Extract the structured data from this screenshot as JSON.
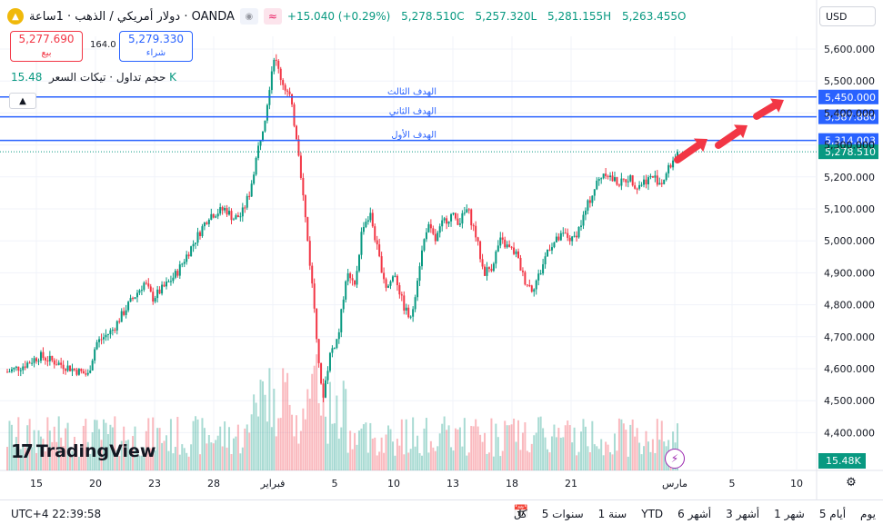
{
  "header": {
    "symbol_icon": "gold-coin-icon",
    "symbol_title": "دولار أمريكي / الذهب · 1ساعة · OANDA",
    "change": "+15.040 (+0.29%)",
    "ohlc": {
      "c": "5,278.510C",
      "l": "5,257.320L",
      "h": "5,281.155H",
      "o": "5,263.455O"
    }
  },
  "sell": {
    "price": "5,277.690",
    "label": "بيع"
  },
  "buy": {
    "price": "5,279.330",
    "label": "شراء"
  },
  "spread": "164.0",
  "volume_legend": {
    "label": "حجم تداول · تيكات السعر",
    "value": "15.48 K"
  },
  "currency": "USD",
  "logo_text": "TradingView",
  "chart_data": {
    "type": "candlestick",
    "symbol": "XAU/USD",
    "interval": "1h",
    "y_axis": {
      "ticks": [
        "5,600.000",
        "5,500.000",
        "5,400.000",
        "5,300.000",
        "5,200.000",
        "5,100.000",
        "5,000.000",
        "4,900.000",
        "4,800.000",
        "4,700.000",
        "4,600.000",
        "4,500.000",
        "4,400.000"
      ],
      "tick_values": [
        5600,
        5500,
        5400,
        5300,
        5200,
        5100,
        5000,
        4900,
        4800,
        4700,
        4600,
        4500,
        4400
      ]
    },
    "x_axis": {
      "ticks": [
        "15",
        "20",
        "23",
        "28",
        "فبراير",
        "5",
        "10",
        "13",
        "18",
        "21",
        "مارس",
        "5",
        "10"
      ]
    },
    "price_path": [
      [
        0,
        4590
      ],
      [
        2,
        4610
      ],
      [
        4,
        4640
      ],
      [
        6,
        4620
      ],
      [
        8,
        4600
      ],
      [
        10,
        4580
      ],
      [
        11,
        4680
      ],
      [
        13,
        4720
      ],
      [
        15,
        4800
      ],
      [
        17,
        4870
      ],
      [
        18,
        4820
      ],
      [
        20,
        4870
      ],
      [
        21,
        4900
      ],
      [
        23,
        4990
      ],
      [
        25,
        5080
      ],
      [
        27,
        5100
      ],
      [
        28,
        5070
      ],
      [
        29,
        5080
      ],
      [
        30,
        5150
      ],
      [
        31,
        5280
      ],
      [
        32,
        5400
      ],
      [
        33,
        5580
      ],
      [
        34,
        5500
      ],
      [
        35,
        5450
      ],
      [
        36,
        5300
      ],
      [
        37,
        5050
      ],
      [
        38,
        4800
      ],
      [
        39,
        4500
      ],
      [
        40,
        4650
      ],
      [
        41,
        4700
      ],
      [
        42,
        4900
      ],
      [
        43,
        4850
      ],
      [
        44,
        5050
      ],
      [
        45,
        5080
      ],
      [
        46,
        4950
      ],
      [
        47,
        4850
      ],
      [
        48,
        4900
      ],
      [
        49,
        4800
      ],
      [
        50,
        4750
      ],
      [
        51,
        4920
      ],
      [
        52,
        5050
      ],
      [
        53,
        5000
      ],
      [
        54,
        5060
      ],
      [
        55,
        5080
      ],
      [
        56,
        5060
      ],
      [
        57,
        5100
      ],
      [
        58,
        5020
      ],
      [
        59,
        4900
      ],
      [
        60,
        4920
      ],
      [
        61,
        5000
      ],
      [
        62,
        4980
      ],
      [
        63,
        4960
      ],
      [
        64,
        4880
      ],
      [
        65,
        4850
      ],
      [
        66,
        4900
      ],
      [
        67,
        4980
      ],
      [
        68,
        5000
      ],
      [
        69,
        5020
      ],
      [
        70,
        5000
      ],
      [
        71,
        5050
      ],
      [
        72,
        5120
      ],
      [
        73,
        5180
      ],
      [
        74,
        5220
      ],
      [
        75,
        5190
      ],
      [
        76,
        5180
      ],
      [
        77,
        5200
      ],
      [
        78,
        5170
      ],
      [
        79,
        5190
      ],
      [
        80,
        5200
      ],
      [
        81,
        5180
      ],
      [
        82,
        5230
      ],
      [
        83,
        5278.51
      ]
    ],
    "x_span": 83,
    "volume_note": "volume bars along bottom",
    "horizontal_lines": [
      {
        "label": "الهدف الثالث",
        "price": 5450,
        "price_label": "5,450.000",
        "color": "#2962ff"
      },
      {
        "label": "الهدف الثاني",
        "price": 5387.88,
        "price_label": "5,387.880",
        "color": "#2962ff"
      },
      {
        "label": "الهدف الأول",
        "price": 5314.003,
        "price_label": "5,314.003",
        "color": "#2962ff"
      }
    ],
    "last_price": {
      "price": 5278.51,
      "label": "5,278.510",
      "color": "#089981"
    },
    "volume_last": "15.48K",
    "arrows_color": "#f23645",
    "up_color": "#089981",
    "down_color": "#f23645"
  },
  "bottom": {
    "timezone": "UTC+4 22:39:58",
    "calendar_icon": "calendar-icon",
    "ranges": [
      "يوم",
      "5 أيام",
      "1 شهر",
      "3 أشهر",
      "6 أشهر",
      "YTD",
      "1 سنة",
      "5 سنوات",
      "كل"
    ]
  },
  "icons": {
    "eye": "eye-icon",
    "wave": "wave-icon",
    "collapse": "chevron-up-icon",
    "bolt": "bolt-icon",
    "gear": "gear-icon"
  }
}
